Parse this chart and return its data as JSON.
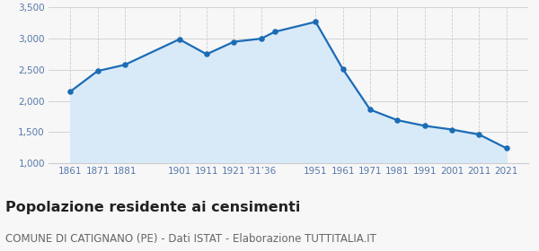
{
  "years": [
    1861,
    1871,
    1881,
    1901,
    1911,
    1921,
    1931,
    1936,
    1951,
    1961,
    1971,
    1981,
    1991,
    2001,
    2011,
    2021
  ],
  "population": [
    2150,
    2480,
    2580,
    2990,
    2750,
    2950,
    3000,
    3110,
    3270,
    2510,
    1860,
    1690,
    1600,
    1540,
    1460,
    1240
  ],
  "line_color": "#1b6cb5",
  "fill_color": "#d8eaf8",
  "marker_color": "#1b6cb5",
  "bg_color": "#f7f7f7",
  "grid_color": "#cccccc",
  "tick_label_color": "#5577aa",
  "ylim": [
    1000,
    3500
  ],
  "yticks": [
    1000,
    1500,
    2000,
    2500,
    3000,
    3500
  ],
  "ytick_labels": [
    "1,000",
    "1,500",
    "2,000",
    "2,500",
    "3,000",
    "3,500"
  ],
  "x_tick_positions": [
    1861,
    1871,
    1881,
    1901,
    1911,
    1921,
    1931,
    1951,
    1961,
    1971,
    1981,
    1991,
    2001,
    2011,
    2021
  ],
  "x_tick_labels": [
    "1861",
    "1871",
    "1881",
    "1901",
    "1911",
    "1921",
    "’31’36",
    "1951",
    "1961",
    "1971",
    "1981",
    "1991",
    "2001",
    "2011",
    "2021"
  ],
  "xlim_left": 1853,
  "xlim_right": 2029,
  "title": "Popolazione residente ai censimenti",
  "subtitle": "COMUNE DI CATIGNANO (PE) - Dati ISTAT - Elaborazione TUTTITALIA.IT",
  "title_fontsize": 11.5,
  "subtitle_fontsize": 8.5,
  "marker_size": 22,
  "linewidth": 1.6
}
